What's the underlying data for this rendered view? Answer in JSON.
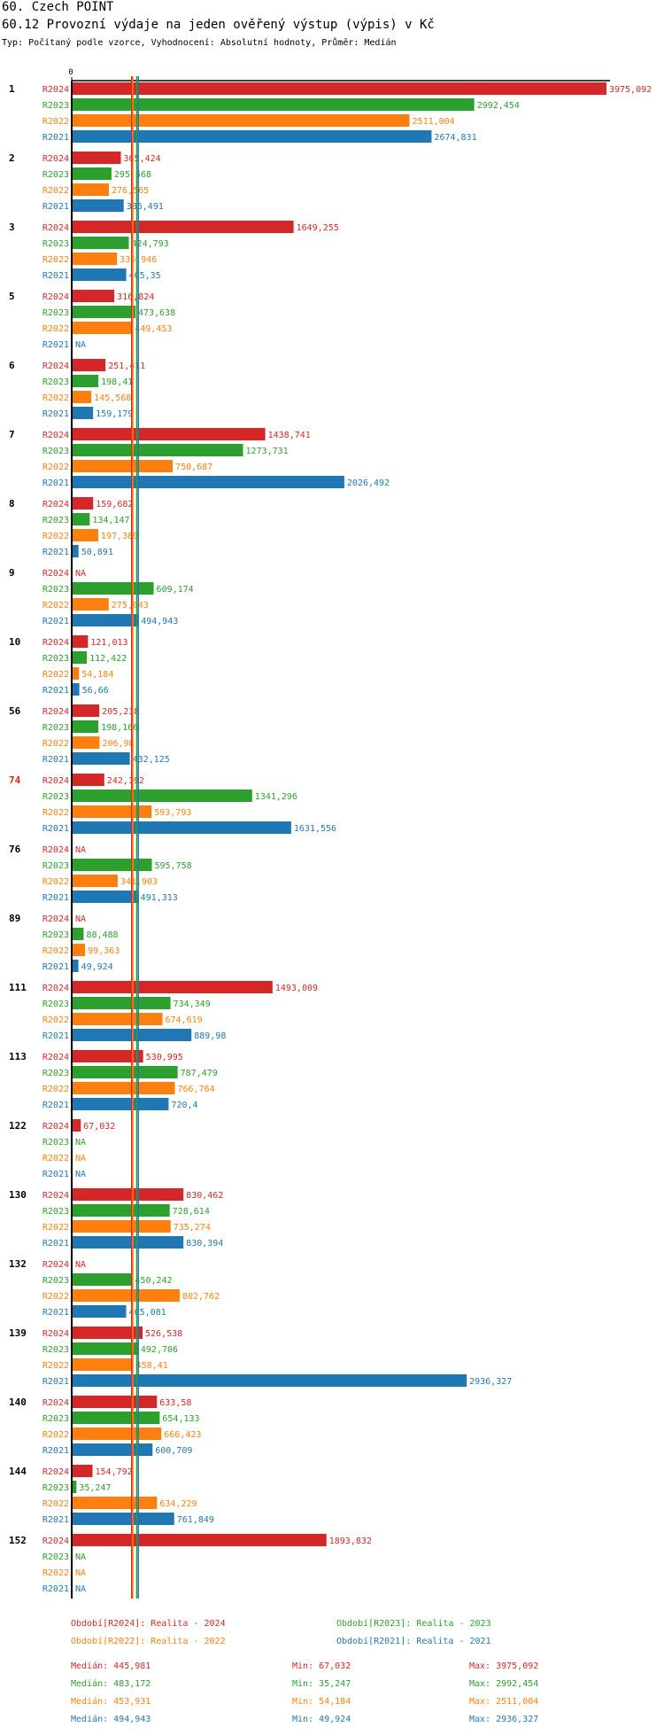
{
  "title": "60. Czech POINT",
  "subtitle": "60.12 Provozní výdaje na jeden ověřený výstup (výpis) v Kč",
  "meta": "Typ: Počítaný podle vzorce, Vyhodnocení: Absolutní hodnoty, Průměr: Medián",
  "colors": {
    "R2024": "#d62728",
    "R2023": "#2ca02c",
    "R2022": "#ff7f0e",
    "R2021": "#1f77b4",
    "highlight_group": "#d62728",
    "axis": "#000000"
  },
  "chart_data": {
    "type": "bar",
    "orientation": "horizontal",
    "x_axis_tick": "0",
    "x_min": 0,
    "x_max": 3975.092,
    "series_order": [
      "R2024",
      "R2023",
      "R2022",
      "R2021"
    ],
    "highlighted_group": "74",
    "medians": {
      "R2024": 445.981,
      "R2023": 483.172,
      "R2022": 453.931,
      "R2021": 494.943
    },
    "groups": [
      {
        "label": "1",
        "values": [
          3975.092,
          2992.454,
          2511.004,
          2674.831
        ],
        "labels": [
          "3975,092",
          "2992,454",
          "2511,004",
          "2674,831"
        ]
      },
      {
        "label": "2",
        "values": [
          365.424,
          295.568,
          276.565,
          386.491
        ],
        "labels": [
          "365,424",
          "295,568",
          "276,565",
          "386,491"
        ]
      },
      {
        "label": "3",
        "values": [
          1649.255,
          424.793,
          336.946,
          405.35
        ],
        "labels": [
          "1649,255",
          "424,793",
          "336,946",
          "405,35"
        ]
      },
      {
        "label": "5",
        "values": [
          316.824,
          473.638,
          449.453,
          null
        ],
        "labels": [
          "316,824",
          "473,638",
          "449,453",
          "NA"
        ]
      },
      {
        "label": "6",
        "values": [
          251.411,
          198.41,
          145.568,
          159.179
        ],
        "labels": [
          "251,411",
          "198,41",
          "145,568",
          "159,179"
        ]
      },
      {
        "label": "7",
        "values": [
          1438.741,
          1273.731,
          750.687,
          2026.492
        ],
        "labels": [
          "1438,741",
          "1273,731",
          "750,687",
          "2026,492"
        ]
      },
      {
        "label": "8",
        "values": [
          159.682,
          134.147,
          197.389,
          50.891
        ],
        "labels": [
          "159,682",
          "134,147",
          "197,389",
          "50,891"
        ]
      },
      {
        "label": "9",
        "values": [
          null,
          609.174,
          275.043,
          494.943
        ],
        "labels": [
          "NA",
          "609,174",
          "275,043",
          "494,943"
        ]
      },
      {
        "label": "10",
        "values": [
          121.013,
          112.422,
          54.184,
          56.66
        ],
        "labels": [
          "121,013",
          "112,422",
          "54,184",
          "56,66"
        ]
      },
      {
        "label": "56",
        "values": [
          205.238,
          198.166,
          206.98,
          432.125
        ],
        "labels": [
          "205,238",
          "198,166",
          "206,98",
          "432,125"
        ]
      },
      {
        "label": "74",
        "values": [
          242.192,
          1341.296,
          593.793,
          1631.556
        ],
        "labels": [
          "242,192",
          "1341,296",
          "593,793",
          "1631,556"
        ]
      },
      {
        "label": "76",
        "values": [
          null,
          595.758,
          341.903,
          491.313
        ],
        "labels": [
          "NA",
          "595,758",
          "341,903",
          "491,313"
        ]
      },
      {
        "label": "89",
        "values": [
          null,
          88.488,
          99.363,
          49.924
        ],
        "labels": [
          "NA",
          "88,488",
          "99,363",
          "49,924"
        ]
      },
      {
        "label": "111",
        "values": [
          1493.009,
          734.349,
          674.619,
          889.98
        ],
        "labels": [
          "1493,009",
          "734,349",
          "674,619",
          "889,98"
        ]
      },
      {
        "label": "113",
        "values": [
          530.995,
          787.479,
          766.764,
          720.4
        ],
        "labels": [
          "530,995",
          "787,479",
          "766,764",
          "720,4"
        ]
      },
      {
        "label": "122",
        "values": [
          67.032,
          null,
          null,
          null
        ],
        "labels": [
          "67,032",
          "NA",
          "NA",
          "NA"
        ]
      },
      {
        "label": "130",
        "values": [
          830.462,
          728.614,
          735.274,
          830.394
        ],
        "labels": [
          "830,462",
          "728,614",
          "735,274",
          "830,394"
        ]
      },
      {
        "label": "132",
        "values": [
          null,
          450.242,
          802.762,
          405.081
        ],
        "labels": [
          "NA",
          "450,242",
          "802,762",
          "405,081"
        ]
      },
      {
        "label": "139",
        "values": [
          526.538,
          492.706,
          458.41,
          2936.327
        ],
        "labels": [
          "526,538",
          "492,706",
          "458,41",
          "2936,327"
        ]
      },
      {
        "label": "140",
        "values": [
          633.58,
          654.133,
          666.423,
          600.709
        ],
        "labels": [
          "633,58",
          "654,133",
          "666,423",
          "600,709"
        ]
      },
      {
        "label": "144",
        "values": [
          154.792,
          35.247,
          634.229,
          761.849
        ],
        "labels": [
          "154,792",
          "35,247",
          "634,229",
          "761,849"
        ]
      },
      {
        "label": "152",
        "values": [
          1893.832,
          null,
          null,
          null
        ],
        "labels": [
          "1893,832",
          "NA",
          "NA",
          "NA"
        ]
      }
    ]
  },
  "legend": {
    "R2024": "Období[R2024]: Realita - 2024",
    "R2023": "Období[R2023]: Realita - 2023",
    "R2022": "Období[R2022]: Realita - 2022",
    "R2021": "Období[R2021]: Realita - 2021"
  },
  "stats": [
    {
      "series": "R2024",
      "median": "Medián: 445,981",
      "min": "Min: 67,032",
      "max": "Max: 3975,092"
    },
    {
      "series": "R2023",
      "median": "Medián: 483,172",
      "min": "Min: 35,247",
      "max": "Max: 2992,454"
    },
    {
      "series": "R2022",
      "median": "Medián: 453,931",
      "min": "Min: 54,184",
      "max": "Max: 2511,004"
    },
    {
      "series": "R2021",
      "median": "Medián: 494,943",
      "min": "Min: 49,924",
      "max": "Max: 2936,327"
    }
  ]
}
